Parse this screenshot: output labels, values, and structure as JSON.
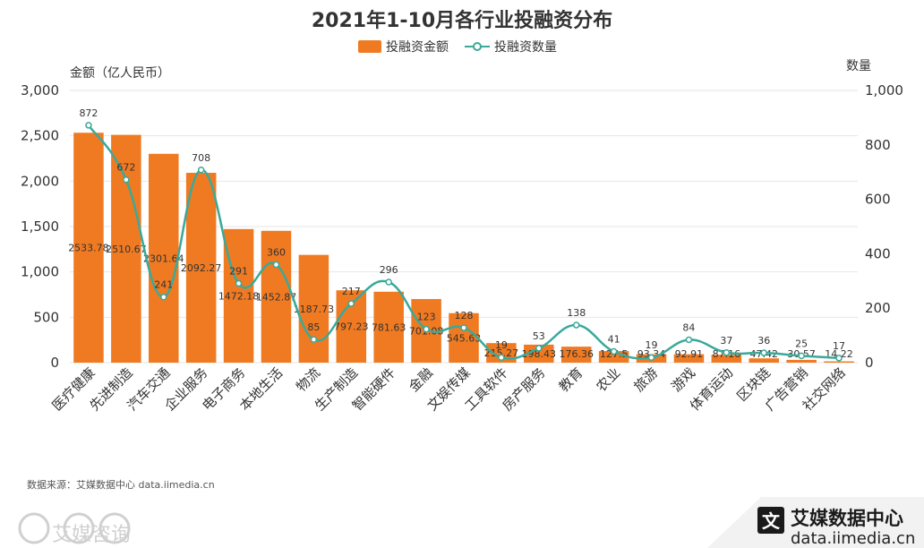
{
  "chart_data": {
    "type": "bar+line",
    "title": "2021年1-10月各行业投融资分布",
    "legend": [
      "投融资金额",
      "投融资数量"
    ],
    "y_left_label": "金额（亿人民币）",
    "y_right_label": "数量",
    "y_left_ticks": [
      "0",
      "500",
      "1,000",
      "1,500",
      "2,000",
      "2,500",
      "3,000"
    ],
    "y_right_ticks": [
      "0",
      "200",
      "400",
      "600",
      "800",
      "1,000"
    ],
    "y_left_range": [
      0,
      3000
    ],
    "y_right_range": [
      0,
      1000
    ],
    "categories": [
      "医疗健康",
      "先进制造",
      "汽车交通",
      "企业服务",
      "电子商务",
      "本地生活",
      "物流",
      "生产制造",
      "智能硬件",
      "金融",
      "文娱传媒",
      "工具软件",
      "房产服务",
      "教育",
      "农业",
      "旅游",
      "游戏",
      "体育运动",
      "区块链",
      "广告营销",
      "社交网络"
    ],
    "series": [
      {
        "name": "投融资金额",
        "type": "bar",
        "axis": "left",
        "values": [
          2533.78,
          2510.67,
          2301.64,
          2092.27,
          1472.18,
          1452.87,
          1187.73,
          797.23,
          781.63,
          701.08,
          545.63,
          215.27,
          198.43,
          176.36,
          127.5,
          93.34,
          92.91,
          87.16,
          47.42,
          30.57,
          14.22
        ],
        "labels": [
          "2533.78",
          "2510.67",
          "2301.64",
          "2092.27",
          "1472.18",
          "1452.87",
          "1187.73",
          "797.23",
          "781.63",
          "701.08",
          "545.63",
          "215.27",
          "198.43",
          "176.36",
          "127.5",
          "93.34",
          "92.91",
          "87.16",
          "47.42",
          "30.57",
          "14.22"
        ]
      },
      {
        "name": "投融资数量",
        "type": "line",
        "axis": "right",
        "values": [
          872,
          672,
          241,
          708,
          291,
          360,
          85,
          217,
          296,
          123,
          128,
          19,
          53,
          138,
          41,
          19,
          84,
          37,
          36,
          25,
          17
        ],
        "labels": [
          "872",
          "672",
          "241",
          "708",
          "291",
          "360",
          "85",
          "217",
          "296",
          "123",
          "128",
          "19",
          "53",
          "138",
          "41",
          "19",
          "84",
          "37",
          "36",
          "25",
          "17"
        ]
      }
    ],
    "colors": {
      "bar": "#f07a22",
      "line": "#3aa99a",
      "grid": "#e6e6e6",
      "text": "#333333"
    }
  },
  "source": "数据来源：艾媒数据中心 data.iimedia.cn",
  "watermark": {
    "brand": "艾媒数据中心",
    "url": "data.iimedia.cn",
    "corner": "艾媒咨询"
  }
}
